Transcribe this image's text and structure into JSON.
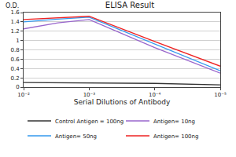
{
  "chart_data": {
    "type": "line",
    "title": "ELISA Result",
    "x_label": "Serial Dilutions of Antibody",
    "y_label": "O.D.",
    "log": "x",
    "x": [
      0.01,
      0.003,
      0.001,
      0.0001,
      1e-05
    ],
    "series": [
      {
        "name": "Control Antigen = 100ng",
        "color": "#333333",
        "values": [
          0.1,
          0.095,
          0.09,
          0.08,
          0.05
        ]
      },
      {
        "name": "Antigen= 10ng",
        "color": "#9966cc",
        "values": [
          1.25,
          1.38,
          1.45,
          0.85,
          0.3
        ]
      },
      {
        "name": "Antigen= 50ng",
        "color": "#3399ee",
        "values": [
          1.4,
          1.46,
          1.5,
          0.93,
          0.35
        ]
      },
      {
        "name": "Antigen= 100ng",
        "color": "#ee2222",
        "values": [
          1.45,
          1.49,
          1.52,
          0.98,
          0.45
        ]
      }
    ],
    "xlim": [
      0.01,
      1e-05
    ],
    "xticks": [
      {
        "value": 0.01,
        "label": "10⁻²"
      },
      {
        "value": 0.001,
        "label": "10⁻³"
      },
      {
        "value": 0.0001,
        "label": "10⁻⁴"
      },
      {
        "value": 1e-05,
        "label": "10⁻⁵"
      }
    ],
    "ylim": [
      0,
      1.6
    ],
    "yticks": [
      0,
      0.2,
      0.4,
      0.6,
      0.8,
      1,
      1.2,
      1.4,
      1.6
    ],
    "grid": true,
    "legend": "bottom"
  }
}
